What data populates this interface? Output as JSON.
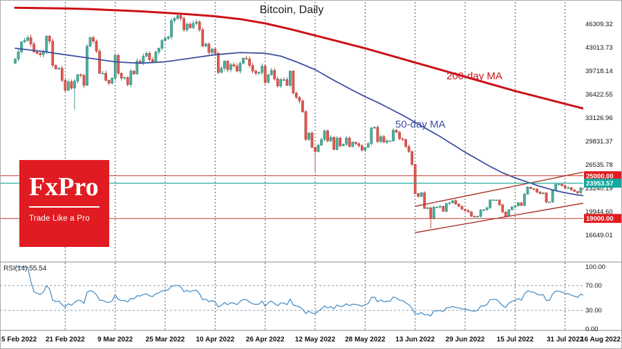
{
  "title": "Bitcoin, Daily",
  "watermark": {
    "brand": "FxPro",
    "tagline": "Trade Like a Pro"
  },
  "annotations": {
    "ma200_label": "200-day MA",
    "ma50_label": "50-day MA"
  },
  "colors": {
    "up": "#4fae9c",
    "up_border": "#1d7d6d",
    "down": "#df5a50",
    "down_border": "#aa2e25",
    "ma200": "#cc1016",
    "ma50": "#3d4fa1",
    "rsi": "#4a90c8",
    "level_line": "#c0392b",
    "channel": "#a93226",
    "current": "#13a79d",
    "badge_red": "#df1d20",
    "badge_teal": "#13a79d",
    "grid": "#555555",
    "logo_bg": "#e01b22"
  },
  "chart_data": {
    "type": "candlestick",
    "title": "Bitcoin, Daily",
    "x_axis": {
      "tick_labels": [
        "5 Feb 2022",
        "21 Feb 2022",
        "9 Mar 2022",
        "25 Mar 2022",
        "10 Apr 2022",
        "26 Apr 2022",
        "12 May 2022",
        "28 May 2022",
        "13 Jun 2022",
        "29 Jun 2022",
        "15 Jul 2022",
        "31 Jul 2022",
        "16 Aug 2022"
      ],
      "tick_day_index": [
        0,
        16,
        32,
        48,
        64,
        80,
        96,
        112,
        128,
        144,
        160,
        176,
        192
      ]
    },
    "y_axis": {
      "tick_values": [
        46309.32,
        43013.73,
        39718.14,
        36422.55,
        33126.96,
        29831.37,
        26535.78,
        23240.19,
        19944.6,
        16649.01
      ],
      "range": [
        13350,
        49200
      ]
    },
    "series": {
      "first_open": 40800,
      "closes": [
        41400,
        42400,
        43800,
        44000,
        44400,
        43500,
        42400,
        42200,
        42000,
        42500,
        44600,
        43900,
        40500,
        40000,
        40100,
        38400,
        37000,
        38200,
        37300,
        38300,
        39200,
        39100,
        37700,
        43200,
        44400,
        43900,
        42500,
        39400,
        39400,
        38400,
        38000,
        38700,
        41900,
        39400,
        38700,
        38800,
        37800,
        39700,
        39300,
        41100,
        40900,
        41800,
        42200,
        41300,
        41000,
        42400,
        42900,
        44000,
        44300,
        44500,
        46800,
        47100,
        47500,
        47100,
        45500,
        46300,
        45800,
        46400,
        46600,
        45500,
        43200,
        43500,
        42300,
        42800,
        42200,
        39500,
        40100,
        41100,
        39900,
        40600,
        40400,
        39700,
        40800,
        41500,
        41400,
        40500,
        39700,
        39400,
        39500,
        40400,
        38100,
        39200,
        39800,
        38600,
        37600,
        38500,
        38500,
        37700,
        39700,
        36600,
        36000,
        35500,
        34000,
        30100,
        31000,
        29000,
        28400,
        29300,
        30100,
        31300,
        29900,
        30400,
        28700,
        30300,
        29200,
        29400,
        30300,
        29100,
        29700,
        29500,
        29200,
        28600,
        29000,
        29500,
        31700,
        31800,
        29800,
        30500,
        29700,
        29900,
        29900,
        31400,
        31100,
        30200,
        30100,
        29100,
        28400,
        26600,
        22500,
        22100,
        22600,
        20400,
        20500,
        19000,
        20600,
        20600,
        20700,
        20000,
        21100,
        21200,
        21500,
        21000,
        20700,
        20300,
        20100,
        19900,
        19300,
        19200,
        19300,
        20200,
        20200,
        20500,
        21600,
        21600,
        21600,
        20900,
        19900,
        19300,
        20200,
        20600,
        20800,
        21200,
        20800,
        22400,
        23400,
        23200,
        23100,
        22700,
        22500,
        22600,
        21300,
        21300,
        22900,
        23800,
        23800,
        23600,
        23300,
        23300,
        23000,
        22800,
        22600,
        23300,
        23000,
        23200,
        23800,
        23200,
        23900,
        23900,
        24400,
        24400,
        24300,
        24100,
        23954
      ],
      "wick_low_overrides": {
        "19": 34300,
        "96": 25400,
        "133": 17600
      }
    },
    "overlays": {
      "ma200": {
        "label": "200-day MA",
        "points": [
          [
            0,
            48600
          ],
          [
            16,
            48500
          ],
          [
            24,
            48400
          ],
          [
            40,
            48100
          ],
          [
            55,
            47700
          ],
          [
            64,
            47400
          ],
          [
            72,
            47000
          ],
          [
            80,
            46400
          ],
          [
            88,
            45600
          ],
          [
            96,
            44700
          ],
          [
            104,
            43800
          ],
          [
            112,
            42900
          ],
          [
            120,
            41900
          ],
          [
            128,
            40900
          ],
          [
            136,
            39900
          ],
          [
            144,
            38900
          ],
          [
            152,
            37900
          ],
          [
            160,
            36900
          ],
          [
            168,
            36000
          ],
          [
            176,
            35100
          ],
          [
            184,
            34200
          ],
          [
            192,
            33300
          ]
        ]
      },
      "ma50": {
        "label": "50-day MA",
        "points": [
          [
            0,
            42900
          ],
          [
            8,
            42500
          ],
          [
            16,
            42000
          ],
          [
            24,
            41500
          ],
          [
            32,
            41000
          ],
          [
            40,
            40800
          ],
          [
            48,
            41000
          ],
          [
            56,
            41500
          ],
          [
            64,
            42000
          ],
          [
            72,
            42300
          ],
          [
            80,
            42200
          ],
          [
            85,
            41800
          ],
          [
            90,
            41000
          ],
          [
            96,
            39900
          ],
          [
            102,
            38400
          ],
          [
            108,
            37000
          ],
          [
            112,
            36100
          ],
          [
            116,
            35300
          ],
          [
            120,
            34400
          ],
          [
            124,
            33500
          ],
          [
            128,
            32500
          ],
          [
            132,
            31500
          ],
          [
            136,
            30500
          ],
          [
            140,
            29400
          ],
          [
            144,
            28300
          ],
          [
            148,
            27300
          ],
          [
            152,
            26300
          ],
          [
            156,
            25400
          ],
          [
            160,
            24700
          ],
          [
            164,
            24100
          ],
          [
            168,
            23500
          ],
          [
            172,
            23000
          ],
          [
            176,
            22600
          ],
          [
            180,
            22300
          ],
          [
            184,
            22100
          ],
          [
            188,
            22100
          ],
          [
            192,
            22300
          ]
        ]
      },
      "channel": {
        "upper": [
          [
            128,
            20700
          ],
          [
            193,
            26500
          ]
        ],
        "lower": [
          [
            128,
            17000
          ],
          [
            193,
            22000
          ]
        ]
      },
      "horizontal_levels": [
        {
          "value": 25000.0,
          "label": "25000.00"
        },
        {
          "value": 19000.0,
          "label": "19000.00"
        }
      ],
      "current_price": {
        "value": 23953.57,
        "label": "23953.57"
      }
    },
    "rsi_panel": {
      "label": "RSI(14) 55.54",
      "period": 14,
      "current_value": 55.54,
      "axis_ticks": [
        100,
        70,
        30,
        0
      ],
      "axis_tick_labels": [
        "100.00",
        "70.00",
        "30.00",
        "0.00"
      ],
      "dashed_levels": [
        70,
        30
      ],
      "range": [
        0,
        100
      ]
    }
  }
}
